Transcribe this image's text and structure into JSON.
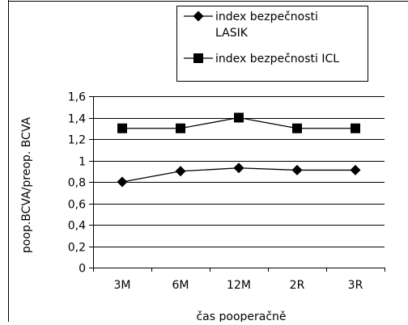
{
  "chart_data": {
    "type": "line",
    "categories": [
      "3M",
      "6M",
      "12M",
      "2R",
      "3R"
    ],
    "series": [
      {
        "name": "index bezpečnosti LASIK",
        "marker": "diamond",
        "values": [
          0.8,
          0.9,
          0.93,
          0.91,
          0.91
        ]
      },
      {
        "name": "index bezpečnosti ICL",
        "marker": "square",
        "values": [
          1.3,
          1.3,
          1.4,
          1.3,
          1.3
        ]
      }
    ],
    "legend": {
      "entries": [
        {
          "line1": "index bezpečnosti",
          "line2": "LASIK",
          "marker": "diamond"
        },
        {
          "line1": "index bezpečnosti ICL",
          "line2": "",
          "marker": "square"
        }
      ],
      "placement": "top-right"
    },
    "xlabel": "čas pooperačně",
    "ylabel": "poop.BCVA/preop. BCVA",
    "ylim": [
      0,
      1.6
    ],
    "yticks": [
      "0",
      "0,2",
      "0,4",
      "0,6",
      "0,8",
      "1",
      "1,2",
      "1,4",
      "1,6"
    ],
    "grid": true,
    "line_color": "#000000",
    "grid_color": "#000000"
  }
}
